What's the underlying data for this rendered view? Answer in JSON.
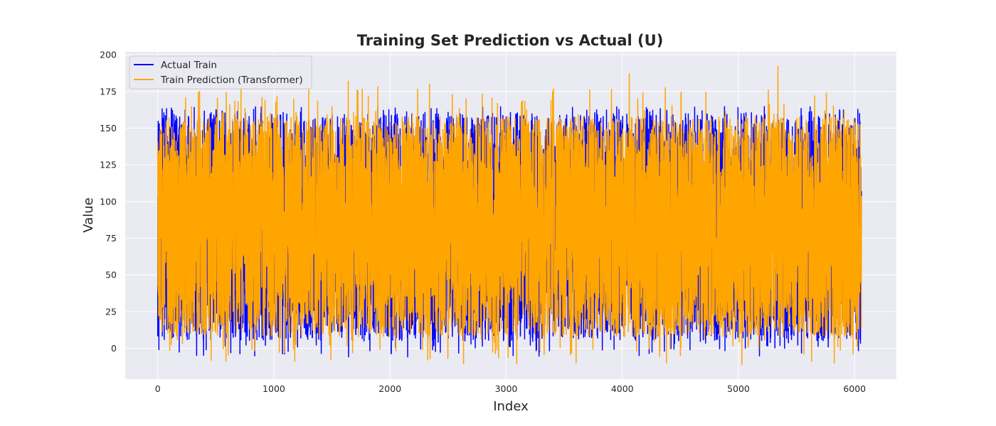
{
  "chart_data": {
    "type": "line",
    "title": "Training Set Prediction vs Actual (U)",
    "xlabel": "Index",
    "ylabel": "Value",
    "xlim": [
      -280,
      6360
    ],
    "ylim": [
      -21,
      202
    ],
    "xticks": [
      0,
      1000,
      2000,
      3000,
      4000,
      5000,
      6000
    ],
    "xtick_labels": [
      "0",
      "1000",
      "2000",
      "3000",
      "4000",
      "5000",
      "6000"
    ],
    "yticks": [
      0,
      25,
      50,
      75,
      100,
      125,
      150,
      175,
      200
    ],
    "ytick_labels": [
      "0",
      "25",
      "50",
      "75",
      "100",
      "125",
      "150",
      "175",
      "200"
    ],
    "grid": true,
    "legend_position": "top-left",
    "series": [
      {
        "name": "Actual Train",
        "color": "#0000ff",
        "n_points": 6060,
        "x_range": [
          0,
          6059
        ],
        "value_range": [
          -6,
          168
        ],
        "typical_band": [
          5,
          160
        ],
        "mean": 80
      },
      {
        "name": "Train Prediction (Transformer)",
        "color": "#ffa500",
        "n_points": 6060,
        "x_range": [
          0,
          6059
        ],
        "value_range": [
          -11,
          192
        ],
        "typical_band": [
          8,
          158
        ],
        "mean": 80,
        "notable_peaks": [
          {
            "x": 360,
            "y": 175
          },
          {
            "x": 1300,
            "y": 176
          },
          {
            "x": 1640,
            "y": 182
          },
          {
            "x": 2340,
            "y": 180
          },
          {
            "x": 3720,
            "y": 176
          },
          {
            "x": 4060,
            "y": 187
          },
          {
            "x": 5340,
            "y": 192
          }
        ],
        "notable_troughs": [
          {
            "x": 4380,
            "y": -10
          },
          {
            "x": 5030,
            "y": -11
          },
          {
            "x": 5630,
            "y": -9
          }
        ]
      }
    ]
  },
  "colors": {
    "plot_background": "#eaeaf2",
    "grid": "#ffffff",
    "actual": "#0000ff",
    "prediction": "#ffa500"
  }
}
